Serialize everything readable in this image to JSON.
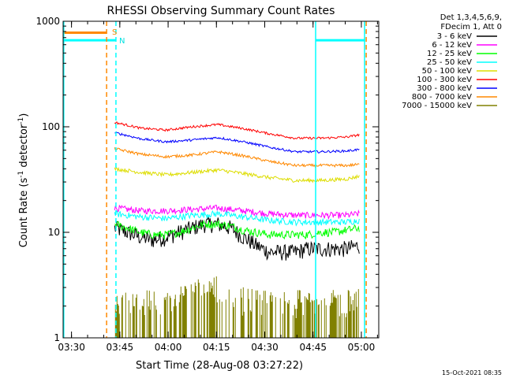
{
  "chart_data": {
    "type": "line",
    "title": "RHESSI Observing Summary Count Rates",
    "xlabel": "Start Time (28-Aug-08 03:27:22)",
    "ylabel_main": "Count Rate (s",
    "ylabel_sup1": "-1",
    "ylabel_mid": " detector",
    "ylabel_sup2": "-1",
    "ylabel_end": ")",
    "x_unit": "minutes after 03:27:22",
    "xlim": [
      0,
      98
    ],
    "ylim": [
      1,
      1000
    ],
    "y_scale": "log",
    "x_ticks": [
      {
        "label": "03:30",
        "value": 2.6
      },
      {
        "label": "03:45",
        "value": 17.6
      },
      {
        "label": "04:00",
        "value": 32.6
      },
      {
        "label": "04:15",
        "value": 47.6
      },
      {
        "label": "04:30",
        "value": 62.6
      },
      {
        "label": "04:45",
        "value": 77.6
      },
      {
        "label": "05:00",
        "value": 92.6
      }
    ],
    "y_ticks": [
      {
        "label": "1",
        "value": 1
      },
      {
        "label": "10",
        "value": 10
      },
      {
        "label": "100",
        "value": 100
      },
      {
        "label": "1000",
        "value": 1000
      }
    ],
    "legend_header": [
      "Det 1,3,4,5,6,9,",
      "FDecim 1, Att 0"
    ],
    "legend_placement": "right",
    "series": [
      {
        "name": "3 - 6 keV",
        "color": "#000000",
        "x": [
          16,
          20,
          24,
          28,
          32,
          36,
          40,
          44,
          48,
          52,
          56,
          60,
          64,
          68,
          72,
          76,
          80,
          84,
          88,
          92
        ],
        "y": [
          11,
          10,
          9,
          8.5,
          9,
          10,
          11,
          12,
          12,
          11,
          9,
          7.5,
          6.5,
          6.5,
          6.5,
          7,
          7,
          7,
          7,
          7.5
        ]
      },
      {
        "name": "6 - 12 keV",
        "color": "#ff00ff",
        "x": [
          16,
          24,
          32,
          40,
          48,
          56,
          64,
          72,
          80,
          88,
          92
        ],
        "y": [
          17,
          16,
          16,
          16.5,
          17,
          16,
          15,
          14.5,
          14.5,
          14.5,
          15
        ]
      },
      {
        "name": "12 - 25 keV",
        "color": "#00ff00",
        "x": [
          16,
          20,
          24,
          28,
          32,
          36,
          40,
          44,
          48,
          52,
          56,
          60,
          64,
          68,
          72,
          76,
          80,
          84,
          88,
          92
        ],
        "y": [
          12,
          11,
          10,
          9.5,
          9.5,
          10,
          11,
          12,
          12,
          11.5,
          10.5,
          10,
          9.5,
          9.5,
          9.5,
          9.5,
          10,
          10,
          10.5,
          11
        ]
      },
      {
        "name": "25 - 50 keV",
        "color": "#00ffff",
        "x": [
          16,
          24,
          32,
          40,
          48,
          56,
          64,
          72,
          80,
          88,
          92
        ],
        "y": [
          15,
          14,
          13.5,
          14.5,
          15,
          14,
          13,
          12.5,
          12.5,
          12.5,
          13
        ]
      },
      {
        "name": "50 - 100 keV",
        "color": "#dddd00",
        "x": [
          16,
          24,
          32,
          40,
          48,
          56,
          64,
          72,
          80,
          88,
          92
        ],
        "y": [
          40,
          37,
          35,
          37,
          39,
          36,
          33,
          31,
          31,
          32,
          34
        ]
      },
      {
        "name": "100 - 300 keV",
        "color": "#ff0000",
        "x": [
          16,
          24,
          32,
          40,
          48,
          56,
          64,
          72,
          80,
          88,
          92
        ],
        "y": [
          110,
          97,
          93,
          100,
          105,
          96,
          86,
          78,
          78,
          80,
          84
        ]
      },
      {
        "name": "300 - 800 keV",
        "color": "#0000ff",
        "x": [
          16,
          24,
          32,
          40,
          48,
          56,
          64,
          72,
          80,
          88,
          92
        ],
        "y": [
          88,
          77,
          72,
          75,
          79,
          72,
          64,
          58,
          58,
          59,
          61
        ]
      },
      {
        "name": "800 - 7000 keV",
        "color": "#ff8800",
        "x": [
          16,
          24,
          32,
          40,
          48,
          56,
          64,
          72,
          80,
          88,
          92
        ],
        "y": [
          62,
          55,
          52,
          54,
          58,
          53,
          47,
          43,
          43,
          43,
          44
        ]
      },
      {
        "name": "7000 - 15000 keV",
        "color": "#808000",
        "x": [
          16,
          20,
          24,
          28,
          32,
          36,
          40,
          44,
          48,
          52,
          56,
          60,
          64,
          68,
          72,
          76,
          80,
          84,
          88,
          92
        ],
        "y": [
          1.6,
          1.5,
          1.5,
          1.5,
          1.6,
          1.6,
          1.9,
          2.0,
          2.1,
          1.8,
          1.6,
          1.5,
          1.6,
          1.5,
          1.5,
          1.6,
          1.5,
          1.5,
          1.5,
          1.6
        ]
      }
    ],
    "annotations": [
      {
        "label": "S",
        "color": "#ff8800",
        "x": 14.2,
        "y": 800
      },
      {
        "label": "N",
        "color": "#00e0e0",
        "x": 16.4,
        "y": 660
      }
    ],
    "saa_segments": [
      {
        "color": "#ff8800",
        "x": [
          0,
          13.5
        ],
        "y": 780
      },
      {
        "color": "#00ffff",
        "x": [
          0,
          16.4
        ],
        "y": 660
      },
      {
        "color": "#00ffff",
        "x": [
          78.4,
          93.6
        ],
        "y": 660
      }
    ],
    "vertical_markers": [
      {
        "x": 13.5,
        "color": "#ff8800",
        "style": "dashed"
      },
      {
        "x": 16.4,
        "color": "#00ffff",
        "style": "dashed"
      },
      {
        "x": 94.1,
        "color": "#ff8800",
        "style": "dashed"
      },
      {
        "x": 0.2,
        "color": "#00ffff",
        "style": "solid"
      },
      {
        "x": 78.4,
        "color": "#00ffff",
        "style": "solid"
      },
      {
        "x": 93.6,
        "color": "#00ffff",
        "style": "solid"
      }
    ],
    "timestamp": "15-Oct-2021 08:35"
  }
}
